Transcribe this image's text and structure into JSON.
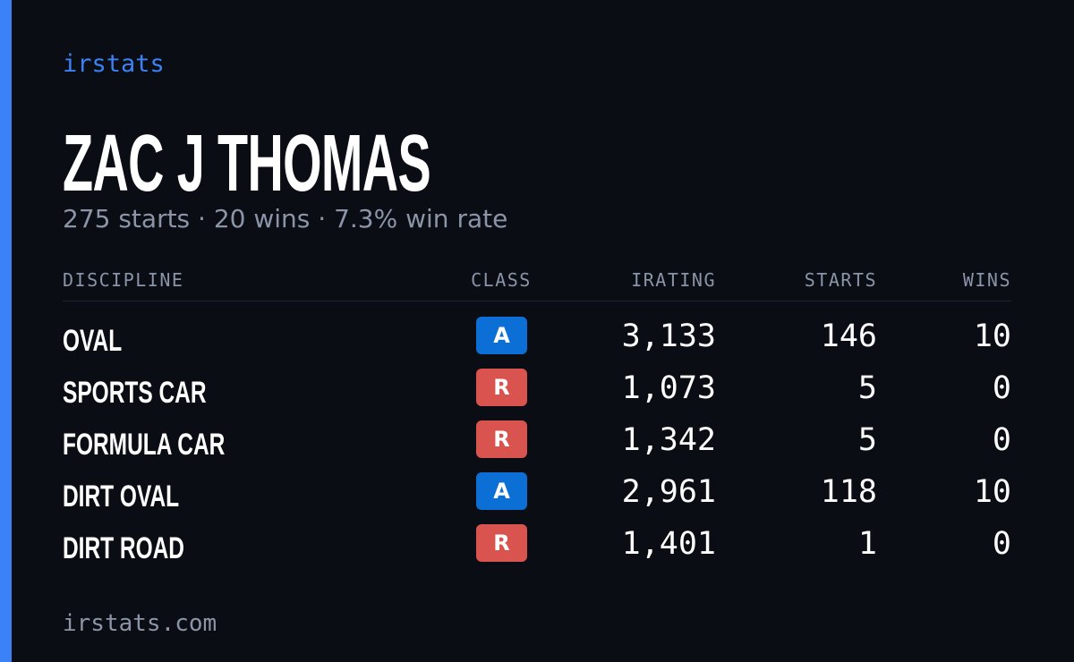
{
  "brand": "irstats",
  "driver": {
    "name": "ZAC J THOMAS",
    "summary": "275 starts · 20 wins · 7.3% win rate"
  },
  "table": {
    "headers": [
      "DISCIPLINE",
      "CLASS",
      "IRATING",
      "STARTS",
      "WINS"
    ],
    "rows": [
      [
        "OVAL",
        "A",
        "3,133",
        "146",
        "10"
      ],
      [
        "SPORTS CAR",
        "R",
        "1,073",
        "5",
        "0"
      ],
      [
        "FORMULA CAR",
        "R",
        "1,342",
        "5",
        "0"
      ],
      [
        "DIRT OVAL",
        "A",
        "2,961",
        "118",
        "10"
      ],
      [
        "DIRT ROAD",
        "R",
        "1,401",
        "1",
        "0"
      ]
    ]
  },
  "footer": "irstats.com"
}
